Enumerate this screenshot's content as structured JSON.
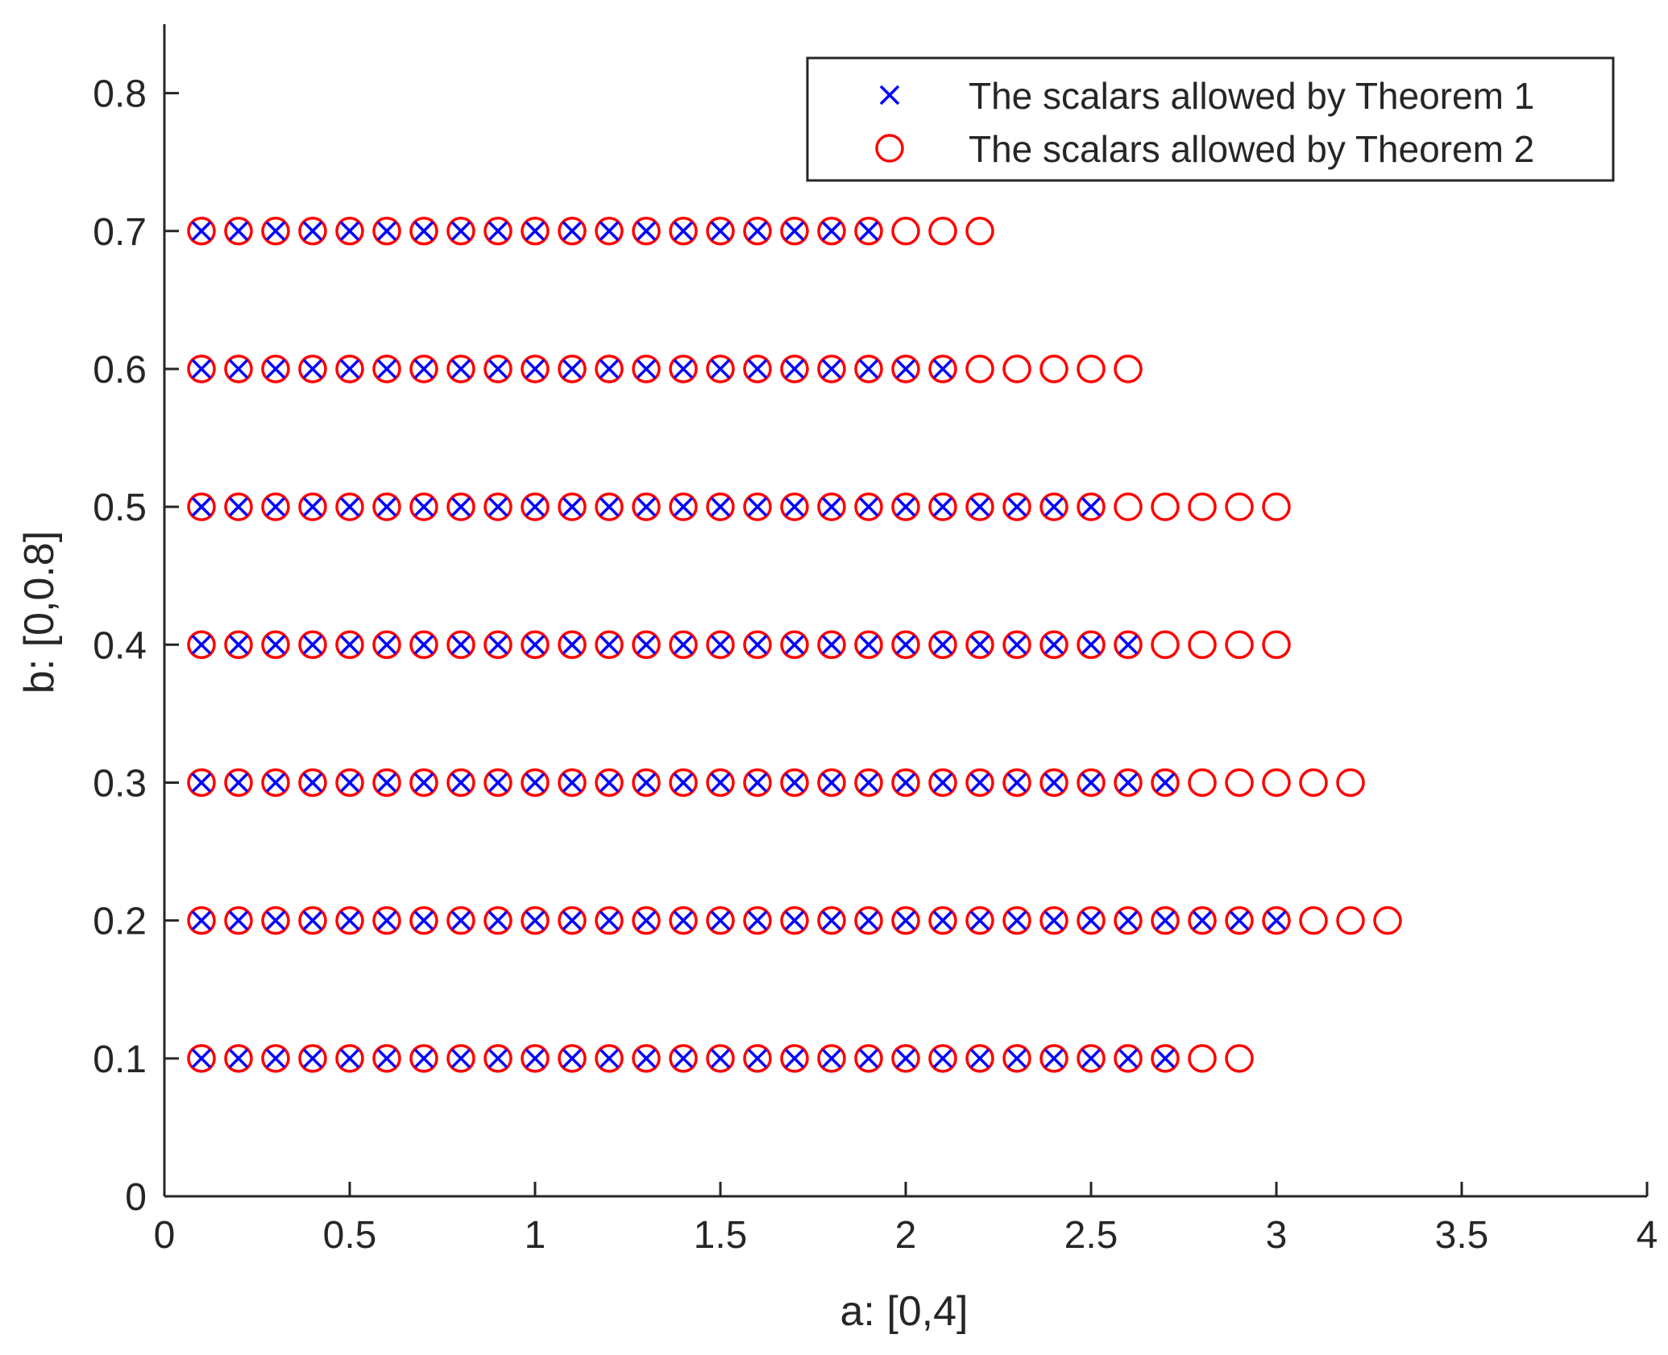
{
  "chart_data": {
    "type": "scatter",
    "xlabel": "a: [0,4]",
    "ylabel": "b: [0,0.8]",
    "xlim": [
      0,
      4
    ],
    "ylim": [
      0,
      0.85
    ],
    "xticks": [
      0,
      0.5,
      1,
      1.5,
      2,
      2.5,
      3,
      3.5,
      4
    ],
    "xtick_labels": [
      "0",
      "0.5",
      "1",
      "1.5",
      "2",
      "2.5",
      "3",
      "3.5",
      "4"
    ],
    "yticks": [
      0,
      0.1,
      0.2,
      0.3,
      0.4,
      0.5,
      0.6,
      0.7,
      0.8
    ],
    "ytick_labels": [
      "0",
      "0.1",
      "0.2",
      "0.3",
      "0.4",
      "0.5",
      "0.6",
      "0.7",
      "0.8"
    ],
    "grid": false,
    "legend_position": "top-right",
    "series": [
      {
        "name": "The scalars allowed by Theorem 1",
        "marker": "x",
        "color": "#0000ff",
        "rows": [
          {
            "b": 0.1,
            "a_from": 0.1,
            "a_to": 2.7,
            "a_step": 0.1
          },
          {
            "b": 0.2,
            "a_from": 0.1,
            "a_to": 3.0,
            "a_step": 0.1
          },
          {
            "b": 0.3,
            "a_from": 0.1,
            "a_to": 2.7,
            "a_step": 0.1
          },
          {
            "b": 0.4,
            "a_from": 0.1,
            "a_to": 2.6,
            "a_step": 0.1
          },
          {
            "b": 0.5,
            "a_from": 0.1,
            "a_to": 2.5,
            "a_step": 0.1
          },
          {
            "b": 0.6,
            "a_from": 0.1,
            "a_to": 2.1,
            "a_step": 0.1
          },
          {
            "b": 0.7,
            "a_from": 0.1,
            "a_to": 1.9,
            "a_step": 0.1
          }
        ]
      },
      {
        "name": "The scalars allowed by Theorem 2",
        "marker": "o",
        "color": "#ff0000",
        "rows": [
          {
            "b": 0.1,
            "a_from": 0.1,
            "a_to": 2.9,
            "a_step": 0.1
          },
          {
            "b": 0.2,
            "a_from": 0.1,
            "a_to": 3.3,
            "a_step": 0.1
          },
          {
            "b": 0.3,
            "a_from": 0.1,
            "a_to": 3.2,
            "a_step": 0.1
          },
          {
            "b": 0.4,
            "a_from": 0.1,
            "a_to": 3.0,
            "a_step": 0.1
          },
          {
            "b": 0.5,
            "a_from": 0.1,
            "a_to": 3.0,
            "a_step": 0.1
          },
          {
            "b": 0.6,
            "a_from": 0.1,
            "a_to": 2.6,
            "a_step": 0.1
          },
          {
            "b": 0.7,
            "a_from": 0.1,
            "a_to": 2.2,
            "a_step": 0.1
          }
        ]
      }
    ]
  }
}
